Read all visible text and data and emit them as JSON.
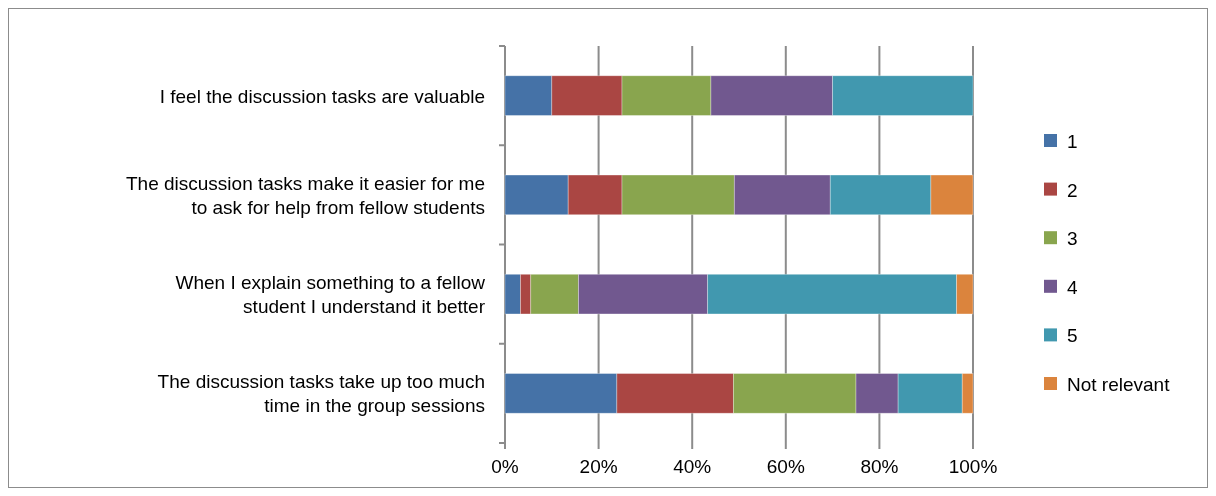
{
  "chart_data": {
    "type": "bar",
    "orientation": "horizontal",
    "stacked": true,
    "categories": [
      "I feel the discussion tasks are valuable",
      "The discussion tasks make it easier for me\nto ask for help from fellow students",
      "When I explain something to a fellow\nstudent I understand it better",
      "The discussion tasks take up too much\ntime in the group sessions"
    ],
    "series": [
      {
        "name": "1",
        "color": "#4572a7",
        "values": [
          10,
          13.5,
          3.3,
          23.9
        ]
      },
      {
        "name": "2",
        "color": "#aa4643",
        "values": [
          15,
          11.5,
          2.2,
          24.9
        ]
      },
      {
        "name": "3",
        "color": "#89a54e",
        "values": [
          19,
          24,
          10.2,
          26.2
        ]
      },
      {
        "name": "4",
        "color": "#71588f",
        "values": [
          26,
          20.5,
          27.6,
          9
        ]
      },
      {
        "name": "5",
        "color": "#4198af",
        "values": [
          30,
          21.5,
          53.2,
          13.7
        ]
      },
      {
        "name": "Not relevant",
        "color": "#db843d",
        "values": [
          null,
          9,
          3.5,
          2.3
        ]
      }
    ],
    "xlim": [
      0,
      100
    ],
    "xticks": [
      {
        "value": 0,
        "label": "0%"
      },
      {
        "value": 20,
        "label": "20%"
      },
      {
        "value": 40,
        "label": "40%"
      },
      {
        "value": 60,
        "label": "60%"
      },
      {
        "value": 80,
        "label": "80%"
      },
      {
        "value": 100,
        "label": "100%"
      }
    ],
    "grid": "x",
    "legend": "right"
  }
}
